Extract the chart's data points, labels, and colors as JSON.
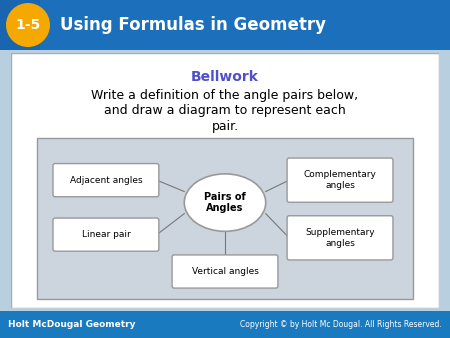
{
  "title_badge_color": "#f5a800",
  "title_badge_text": "1-5",
  "title_text": "Using Formulas in Geometry",
  "header_bg": "#1a65b0",
  "header_bg2": "#2080cc",
  "footer_bg_color": "#1a7abf",
  "footer_left_text": "Holt McDougal Geometry",
  "footer_right_text": "Copyright © by Holt Mc Dougal. All Rights Reserved.",
  "body_bg_color": "#b8cfe0",
  "content_bg_color": "#ffffff",
  "content_border": "#aaaaaa",
  "bellwork_color": "#5050cc",
  "bellwork_text": "Bellwork",
  "body_line1": "Write a definition of the angle pairs below,",
  "body_line2": "and draw a diagram to represent each",
  "body_line3": "pair.",
  "diagram_bg": "#ccd4de",
  "diagram_border": "#999999",
  "center_label": "Pairs of\nAngles",
  "left_top_label": "Adjacent angles",
  "left_bot_label": "Linear pair",
  "right_top_label": "Complementary\nangles",
  "right_bot_label": "Supplementary\nangles",
  "bot_center_label": "Vertical angles",
  "box_bg": "#ffffff",
  "box_border": "#999999",
  "line_color": "#777777"
}
